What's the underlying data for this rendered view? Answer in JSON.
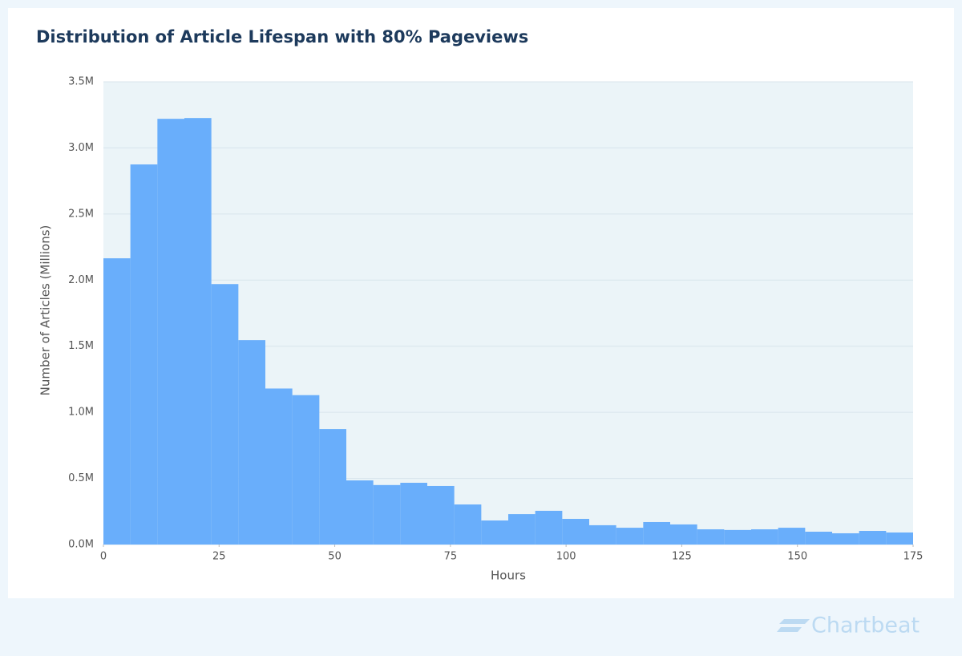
{
  "chart_data": {
    "type": "histogram",
    "title": "Distribution of Article Lifespan with 80% Pageviews",
    "x_label": "Hours",
    "y_label": "Number of Articles (Millions)",
    "bins": [
      0,
      5.83,
      11.67,
      17.5,
      23.33,
      29.17,
      35,
      40.83,
      46.67,
      52.5,
      58.33,
      64.17,
      70,
      75.83,
      81.67,
      87.5,
      93.33,
      99.17,
      105,
      110.83,
      116.67,
      122.5,
      128.33,
      134.17,
      140,
      145.83,
      151.67,
      157.5,
      163.33,
      169.17,
      175
    ],
    "values": [
      2.165,
      2.875,
      3.22,
      3.226,
      1.97,
      1.546,
      1.18,
      1.13,
      0.873,
      0.485,
      0.45,
      0.467,
      0.443,
      0.303,
      0.182,
      0.23,
      0.255,
      0.194,
      0.146,
      0.127,
      0.17,
      0.152,
      0.115,
      0.11,
      0.115,
      0.127,
      0.097,
      0.085,
      0.103,
      0.091
    ],
    "color": "#69aefb",
    "xlim": [
      0,
      175
    ],
    "xticks": [
      0,
      25,
      50,
      75,
      100,
      125,
      150,
      175
    ],
    "ylim": [
      0,
      3.5
    ],
    "yticks": [
      {
        "value": 0,
        "label": "0.0M"
      },
      {
        "value": 0.5,
        "label": "0.5M"
      },
      {
        "value": 1,
        "label": "1.0M"
      },
      {
        "value": 1.5,
        "label": "1.5M"
      },
      {
        "value": 2,
        "label": "2.0M"
      },
      {
        "value": 2.5,
        "label": "2.5M"
      },
      {
        "value": 3,
        "label": "3.0M"
      },
      {
        "value": 3.5,
        "label": "3.5M"
      }
    ],
    "grid": true
  },
  "footer": {
    "brand": "Chartbeat"
  }
}
